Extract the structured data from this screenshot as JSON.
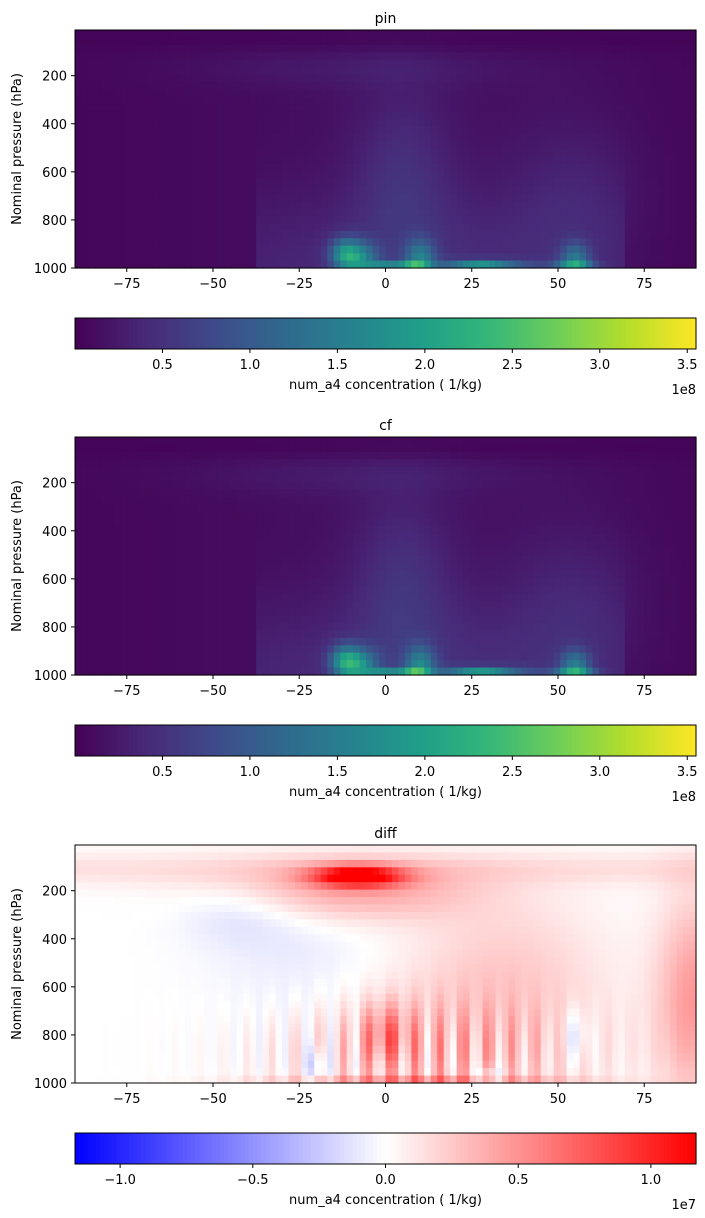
{
  "chart_data": [
    {
      "type": "heatmap",
      "title": "pin",
      "ylabel": "Nominal pressure (hPa)",
      "xlabel": "",
      "x_ticks": [
        "−75",
        "−50",
        "−25",
        "0",
        "25",
        "50",
        "75"
      ],
      "x_tick_values": [
        -75,
        -50,
        -25,
        0,
        25,
        50,
        75
      ],
      "y_ticks": [
        "200",
        "400",
        "600",
        "800",
        "1000"
      ],
      "y_tick_values": [
        200,
        400,
        600,
        800,
        1000
      ],
      "xlim": [
        -90,
        90
      ],
      "ylim": [
        1000,
        10
      ],
      "colormap": "viridis",
      "colorbar": {
        "label": "num_a4 concentration ( 1/kg)",
        "ticks": [
          "0.5",
          "1.0",
          "1.5",
          "2.0",
          "2.5",
          "3.0",
          "3.5"
        ],
        "tick_values": [
          0.5,
          1.0,
          1.5,
          2.0,
          2.5,
          3.0,
          3.5
        ],
        "range": [
          0,
          3.55
        ],
        "offset_text": "1e8"
      }
    },
    {
      "type": "heatmap",
      "title": "cf",
      "ylabel": "Nominal pressure (hPa)",
      "xlabel": "",
      "x_ticks": [
        "−75",
        "−50",
        "−25",
        "0",
        "25",
        "50",
        "75"
      ],
      "x_tick_values": [
        -75,
        -50,
        -25,
        0,
        25,
        50,
        75
      ],
      "y_ticks": [
        "200",
        "400",
        "600",
        "800",
        "1000"
      ],
      "y_tick_values": [
        200,
        400,
        600,
        800,
        1000
      ],
      "xlim": [
        -90,
        90
      ],
      "ylim": [
        1000,
        10
      ],
      "colormap": "viridis",
      "colorbar": {
        "label": "num_a4 concentration ( 1/kg)",
        "ticks": [
          "0.5",
          "1.0",
          "1.5",
          "2.0",
          "2.5",
          "3.0",
          "3.5"
        ],
        "tick_values": [
          0.5,
          1.0,
          1.5,
          2.0,
          2.5,
          3.0,
          3.5
        ],
        "range": [
          0,
          3.55
        ],
        "offset_text": "1e8"
      }
    },
    {
      "type": "heatmap",
      "title": "diff",
      "ylabel": "Nominal pressure (hPa)",
      "xlabel": "",
      "x_ticks": [
        "−75",
        "−50",
        "−25",
        "0",
        "25",
        "50",
        "75"
      ],
      "x_tick_values": [
        -75,
        -50,
        -25,
        0,
        25,
        50,
        75
      ],
      "y_ticks": [
        "200",
        "400",
        "600",
        "800",
        "1000"
      ],
      "y_tick_values": [
        200,
        400,
        600,
        800,
        1000
      ],
      "xlim": [
        -90,
        90
      ],
      "ylim": [
        1000,
        10
      ],
      "colormap": "bwr",
      "colorbar": {
        "label": "num_a4 concentration ( 1/kg)",
        "ticks": [
          "−1.0",
          "−0.5",
          "0.0",
          "0.5",
          "1.0"
        ],
        "tick_values": [
          -1.0,
          -0.5,
          0.0,
          0.5,
          1.0
        ],
        "range": [
          -1.17,
          1.17
        ],
        "offset_text": "1e7"
      }
    }
  ]
}
